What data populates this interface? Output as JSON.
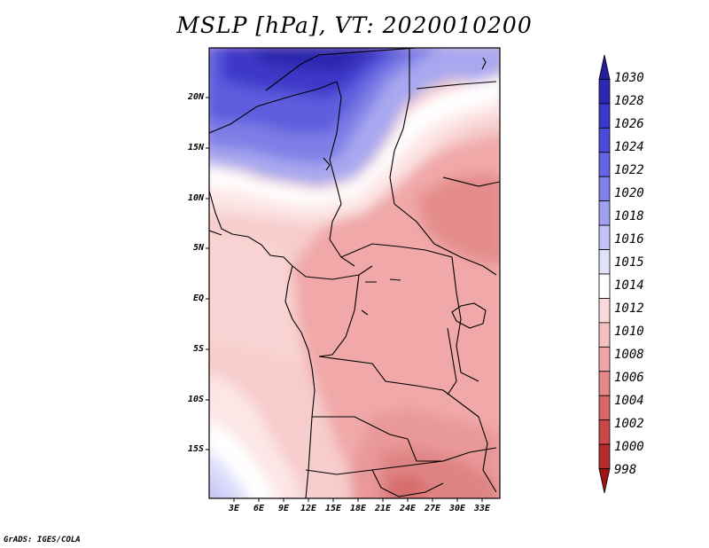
{
  "title": "MSLP [hPa], VT: 2020010200",
  "credit": "GrADS: IGES/COLA",
  "axes": {
    "lat_ticks": [
      "20N",
      "15N",
      "10N",
      "5N",
      "EQ",
      "5S",
      "10S",
      "15S"
    ],
    "lon_ticks": [
      "3E",
      "6E",
      "9E",
      "12E",
      "15E",
      "18E",
      "21E",
      "24E",
      "27E",
      "30E",
      "33E"
    ]
  },
  "colorbar": {
    "labels": [
      "1030",
      "1028",
      "1026",
      "1024",
      "1022",
      "1020",
      "1018",
      "1016",
      "1015",
      "1014",
      "1012",
      "1010",
      "1008",
      "1006",
      "1004",
      "1002",
      "1000",
      "998"
    ],
    "colors": [
      "#251e9c",
      "#2d28b4",
      "#3b37c9",
      "#4c4bd8",
      "#6464e0",
      "#7f7fe8",
      "#a0a0ef",
      "#c2c2f6",
      "#e2e2fb",
      "#ffffff",
      "#fadada",
      "#f5c2c2",
      "#eea6a6",
      "#e48888",
      "#d86868",
      "#c84848",
      "#b52a2a",
      "#9e1414"
    ]
  },
  "map": {
    "region": "Central Africa",
    "variable": "Mean sea level pressure",
    "units": "hPa",
    "valid_time": "2020010200"
  }
}
